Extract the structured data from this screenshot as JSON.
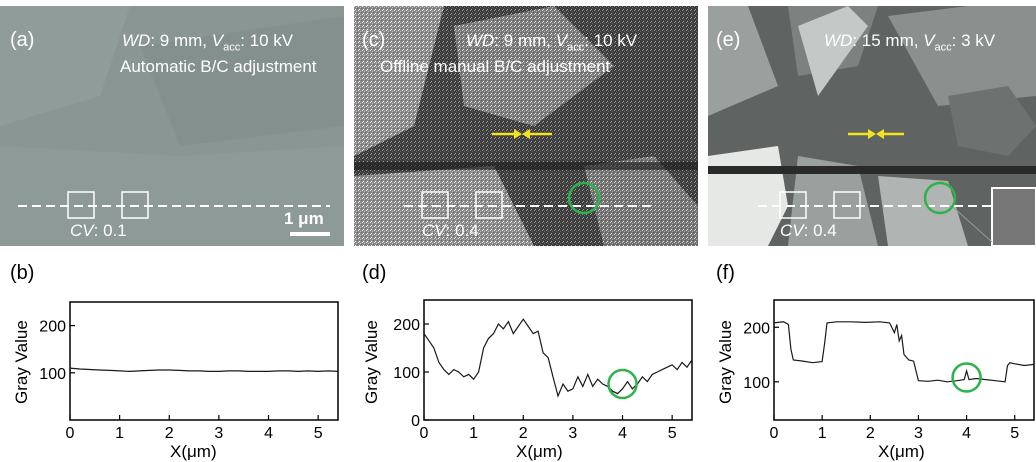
{
  "panels": [
    {
      "letter": "(a)",
      "wd_key": "WD",
      "wd_rest": ": 9 mm, ",
      "v_key": "V",
      "v_sub": "acc",
      "v_rest": ": 10 kV",
      "subtitle": "Automatic B/C adjustment",
      "cv_key": "CV",
      "cv_rest": ": 0.1",
      "scale_bar": "1 μm"
    },
    {
      "letter": "(c)",
      "wd_key": "WD",
      "wd_rest": ": 9 mm, ",
      "v_key": "V",
      "v_sub": "acc",
      "v_rest": ": 10 kV",
      "subtitle": "Offline manual B/C adjustment",
      "cv_key": "CV",
      "cv_rest": ": 0.4"
    },
    {
      "letter": "(e)",
      "wd_key": "WD",
      "wd_rest": ": 15 mm, ",
      "v_key": "V",
      "v_sub": "acc",
      "v_rest": ": 3 kV",
      "cv_key": "CV",
      "cv_rest": ": 0.4"
    }
  ],
  "colors": {
    "marker_green": "#2db34a",
    "arrow_yellow": "#f4e41c",
    "line": "#1a1a1a"
  },
  "chart_data": [
    {
      "type": "line",
      "letter": "(b)",
      "xlabel": "X(μm)",
      "ylabel": "Gray Value",
      "xlim": [
        0,
        5.4
      ],
      "ylim": [
        0,
        250
      ],
      "x_ticks": [
        "0",
        "1",
        "2",
        "3",
        "4",
        "5"
      ],
      "y_ticks": [
        "100",
        "200"
      ],
      "y_tick_values": [
        100,
        200
      ],
      "series": [
        {
          "x": [
            0,
            0.2,
            0.4,
            0.6,
            0.8,
            1.0,
            1.2,
            1.4,
            1.6,
            1.8,
            2.0,
            2.2,
            2.4,
            2.6,
            2.8,
            3.0,
            3.2,
            3.4,
            3.6,
            3.8,
            4.0,
            4.2,
            4.4,
            4.6,
            4.8,
            5.0,
            5.2,
            5.4
          ],
          "y": [
            110,
            108,
            107,
            106,
            105,
            104,
            103,
            104,
            105,
            106,
            106,
            105,
            104,
            104,
            103,
            103,
            104,
            104,
            103,
            103,
            103,
            104,
            104,
            103,
            104,
            103,
            104,
            103
          ]
        }
      ]
    },
    {
      "type": "line",
      "letter": "(d)",
      "xlabel": "X(μm)",
      "ylabel": "Gray Value",
      "xlim": [
        0,
        5.4
      ],
      "ylim": [
        0,
        250
      ],
      "x_ticks": [
        "0",
        "1",
        "2",
        "3",
        "4",
        "5"
      ],
      "y_ticks": [
        "0",
        "100",
        "200"
      ],
      "y_tick_values": [
        0,
        100,
        200
      ],
      "circle": {
        "x": 4.0,
        "y": 75
      },
      "series": [
        {
          "x": [
            0,
            0.1,
            0.2,
            0.3,
            0.4,
            0.5,
            0.6,
            0.7,
            0.8,
            0.9,
            1.0,
            1.1,
            1.2,
            1.3,
            1.4,
            1.5,
            1.6,
            1.7,
            1.8,
            1.9,
            2.0,
            2.1,
            2.2,
            2.3,
            2.4,
            2.5,
            2.6,
            2.7,
            2.8,
            2.9,
            3.0,
            3.1,
            3.2,
            3.3,
            3.4,
            3.5,
            3.6,
            3.7,
            3.8,
            3.9,
            4.0,
            4.1,
            4.2,
            4.3,
            4.4,
            4.5,
            4.6,
            4.7,
            4.8,
            4.9,
            5.0,
            5.1,
            5.2,
            5.3,
            5.4
          ],
          "y": [
            180,
            165,
            150,
            120,
            105,
            95,
            105,
            100,
            90,
            95,
            85,
            100,
            150,
            170,
            180,
            200,
            190,
            205,
            180,
            195,
            210,
            195,
            180,
            185,
            140,
            130,
            90,
            50,
            75,
            60,
            65,
            90,
            70,
            95,
            70,
            85,
            75,
            70,
            60,
            55,
            65,
            80,
            65,
            75,
            90,
            80,
            95,
            100,
            105,
            110,
            115,
            105,
            120,
            110,
            125
          ]
        }
      ]
    },
    {
      "type": "line",
      "letter": "(f)",
      "xlabel": "X(μm)",
      "ylabel": "Gray Value",
      "xlim": [
        0,
        5.4
      ],
      "ylim": [
        30,
        250
      ],
      "x_ticks": [
        "0",
        "1",
        "2",
        "3",
        "4",
        "5"
      ],
      "y_ticks": [
        "100",
        "200"
      ],
      "y_tick_values": [
        100,
        200
      ],
      "circle": {
        "x": 4.0,
        "y": 108
      },
      "series": [
        {
          "x": [
            0,
            0.2,
            0.3,
            0.35,
            0.4,
            0.6,
            0.8,
            1.0,
            1.05,
            1.1,
            1.3,
            1.6,
            1.9,
            2.2,
            2.4,
            2.5,
            2.55,
            2.6,
            2.65,
            2.7,
            2.8,
            2.9,
            2.95,
            3.0,
            3.2,
            3.4,
            3.6,
            3.8,
            3.95,
            4.0,
            4.05,
            4.2,
            4.4,
            4.6,
            4.8,
            4.85,
            4.9,
            5.0,
            5.2,
            5.4
          ],
          "y": [
            208,
            210,
            205,
            160,
            140,
            138,
            135,
            137,
            170,
            208,
            210,
            210,
            209,
            210,
            208,
            190,
            205,
            175,
            185,
            150,
            140,
            138,
            120,
            102,
            101,
            103,
            100,
            102,
            104,
            120,
            104,
            106,
            104,
            102,
            100,
            130,
            135,
            133,
            130,
            132
          ]
        }
      ]
    }
  ]
}
